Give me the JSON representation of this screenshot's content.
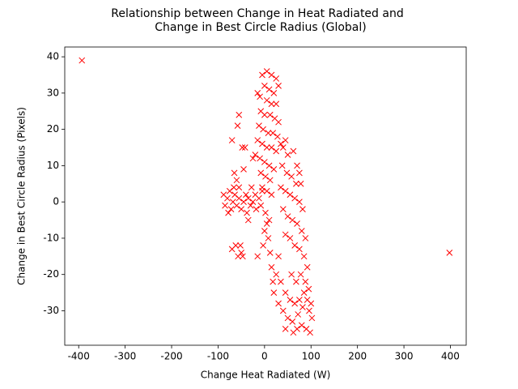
{
  "chart_data": {
    "type": "scatter",
    "title": [
      "Relationship between Change in Heat Radiated and",
      "Change in Best Circle Radius (Global)"
    ],
    "xlabel": "Change Heat Radiated (W)",
    "ylabel": "Change in Best Circle Radius (Pixels)",
    "color": "#ff0000",
    "marker": "x",
    "xlim": [
      -430,
      434
    ],
    "ylim": [
      -39.5,
      42.7
    ],
    "xticks": [
      -400,
      -300,
      -200,
      -100,
      0,
      100,
      200,
      300,
      400
    ],
    "yticks": [
      -30,
      -20,
      -10,
      0,
      10,
      20,
      30,
      40
    ],
    "grid": false,
    "x": [
      -393,
      398,
      -70,
      -58,
      -55,
      -48,
      -42,
      -45,
      -65,
      -60,
      -55,
      -70,
      -62,
      -57,
      -50,
      -47,
      -52,
      -15,
      -35,
      -88,
      -85,
      -80,
      -75,
      -72,
      -68,
      -64,
      -60,
      -55,
      -50,
      -45,
      -40,
      -35,
      -30,
      -25,
      -20,
      -18,
      -12,
      -8,
      -5,
      -28,
      -38,
      -78,
      -66,
      -5,
      5,
      15,
      25,
      30,
      0,
      10,
      20,
      -10,
      -15,
      5,
      15,
      25,
      -8,
      0,
      12,
      22,
      30,
      -12,
      -3,
      8,
      18,
      28,
      -15,
      -5,
      5,
      15,
      25,
      35,
      45,
      -20,
      -10,
      0,
      10,
      20,
      -25,
      -8,
      2,
      12,
      -5,
      5,
      15,
      40,
      50,
      62,
      70,
      75,
      38,
      48,
      58,
      68,
      78,
      35,
      45,
      55,
      65,
      75,
      82,
      40,
      50,
      60,
      70,
      80,
      45,
      55,
      65,
      75,
      85,
      88,
      92,
      2,
      5,
      8,
      12,
      15,
      18,
      20,
      25,
      10,
      0,
      -3,
      30,
      35,
      45,
      55,
      65,
      75,
      85,
      95,
      100,
      40,
      50,
      60,
      70,
      80,
      90,
      98,
      102,
      58,
      68,
      78,
      88,
      96,
      62,
      72,
      82,
      92,
      30,
      45
    ],
    "y": [
      39,
      -14,
      17,
      21,
      24,
      15,
      15,
      9,
      8,
      6,
      4,
      -13,
      -12,
      -15,
      -14,
      -15,
      -12,
      -15,
      -5,
      2,
      -1,
      1,
      3,
      -2,
      0,
      2,
      -1,
      1,
      -2,
      0,
      2,
      1,
      -1,
      0,
      2,
      -2,
      1,
      -1,
      3,
      4,
      -3,
      -3,
      4,
      35,
      36,
      35,
      34,
      32,
      32,
      31,
      30,
      29,
      30,
      28,
      27,
      27,
      25,
      24,
      24,
      23,
      22,
      21,
      20,
      19,
      19,
      18,
      17,
      16,
      15,
      15,
      14,
      16,
      17,
      13,
      12,
      11,
      10,
      9,
      12,
      8,
      7,
      6,
      4,
      3,
      2,
      15,
      13,
      14,
      10,
      8,
      10,
      8,
      7,
      5,
      5,
      4,
      3,
      2,
      1,
      0,
      -2,
      -2,
      -4,
      -5,
      -6,
      -8,
      -9,
      -10,
      -12,
      -13,
      -15,
      -10,
      -18,
      -3,
      -6,
      -10,
      -14,
      -18,
      -22,
      -25,
      -20,
      -5,
      -8,
      -12,
      -15,
      -22,
      -25,
      -27,
      -28,
      -27,
      -25,
      -24,
      -28,
      -30,
      -32,
      -33,
      -35,
      -34,
      -35,
      -36,
      -32,
      -20,
      -22,
      -20,
      -22,
      -30,
      -36,
      -31,
      -29,
      -27,
      -28,
      -35
    ]
  }
}
